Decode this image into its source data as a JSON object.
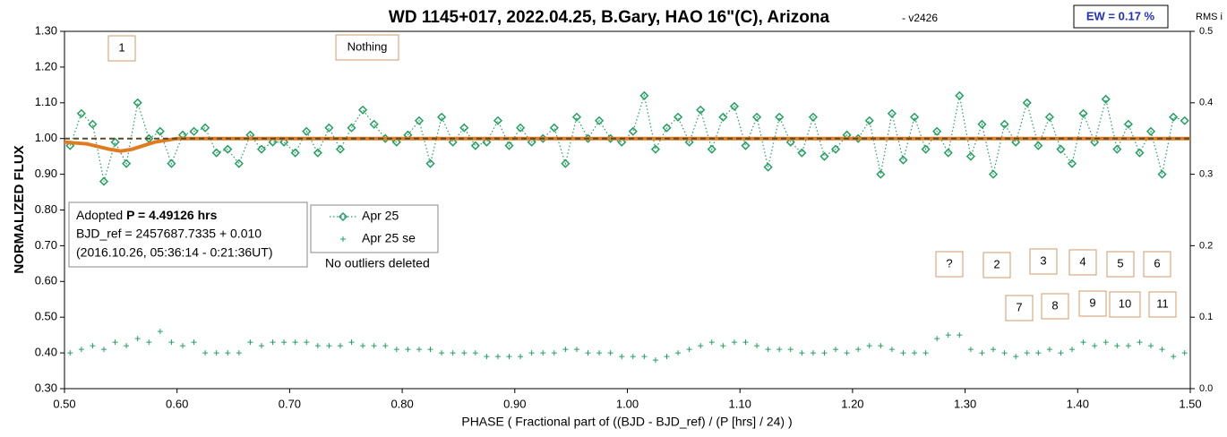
{
  "chart_data": {
    "type": "scatter",
    "title": "WD 1145+017, 2022.04.25, B.Gary, HAO 16\"(C), Arizona",
    "subtitle": "- v2426",
    "xlabel": "PHASE ( Fractional part of ((BJD - BJD_ref) / (P [hrs] / 24) )",
    "ylabel": "NORMALIZED FLUX",
    "y2label": "RMS i",
    "ew": "EW = 0.17 %",
    "info": {
      "prefix": "Adopted",
      "period": "P = 4.49126 hrs",
      "line2": "BJD_ref = 2457687.7335 + 0.010",
      "line3": "(2016.10.26, 05:36:14 - 0:21:36UT)"
    },
    "note": "No outliers deleted",
    "annotations": [
      "1",
      "Nothing",
      "?",
      "2",
      "3",
      "4",
      "5",
      "6",
      "7",
      "8",
      "9",
      "10",
      "11"
    ],
    "xlim": [
      0.5,
      1.5
    ],
    "xticks": [
      {
        "value": 0.5,
        "label": "0.50"
      },
      {
        "value": 0.6,
        "label": "0.60"
      },
      {
        "value": 0.7,
        "label": "0.70"
      },
      {
        "value": 0.8,
        "label": "0.80"
      },
      {
        "value": 0.9,
        "label": "0.90"
      },
      {
        "value": 1.0,
        "label": "1.00"
      },
      {
        "value": 1.1,
        "label": "1.10"
      },
      {
        "value": 1.2,
        "label": "1.20"
      },
      {
        "value": 1.3,
        "label": "1.30"
      },
      {
        "value": 1.4,
        "label": "1.40"
      },
      {
        "value": 1.5,
        "label": "1.50"
      }
    ],
    "ylim": [
      0.3,
      1.3
    ],
    "yticks": [
      {
        "value": 0.3,
        "label": "0.30"
      },
      {
        "value": 0.4,
        "label": "0.40"
      },
      {
        "value": 0.5,
        "label": "0.50"
      },
      {
        "value": 0.6,
        "label": "0.60"
      },
      {
        "value": 0.7,
        "label": "0.70"
      },
      {
        "value": 0.8,
        "label": "0.80"
      },
      {
        "value": 0.9,
        "label": "0.90"
      },
      {
        "value": 1.0,
        "label": "1.00"
      },
      {
        "value": 1.1,
        "label": "1.10"
      },
      {
        "value": 1.2,
        "label": "1.20"
      },
      {
        "value": 1.3,
        "label": "1.30"
      }
    ],
    "y2lim": [
      0,
      0.5
    ],
    "y2ticks": [
      {
        "value": 0,
        "label": "0.0"
      },
      0.1,
      0.2,
      0.3,
      0.4,
      0.5
    ],
    "x": [
      0.505,
      0.515,
      0.525,
      0.535,
      0.545,
      0.555,
      0.565,
      0.575,
      0.585,
      0.595,
      0.605,
      0.615,
      0.625,
      0.635,
      0.645,
      0.655,
      0.665,
      0.675,
      0.685,
      0.695,
      0.705,
      0.715,
      0.725,
      0.735,
      0.745,
      0.755,
      0.765,
      0.775,
      0.785,
      0.795,
      0.805,
      0.815,
      0.825,
      0.835,
      0.845,
      0.855,
      0.865,
      0.875,
      0.885,
      0.895,
      0.905,
      0.915,
      0.925,
      0.935,
      0.945,
      0.955,
      0.965,
      0.975,
      0.985,
      0.995,
      1.005,
      1.015,
      1.025,
      1.035,
      1.045,
      1.055,
      1.065,
      1.075,
      1.085,
      1.095,
      1.105,
      1.115,
      1.125,
      1.135,
      1.145,
      1.155,
      1.165,
      1.175,
      1.185,
      1.195,
      1.205,
      1.215,
      1.225,
      1.235,
      1.245,
      1.255,
      1.265,
      1.275,
      1.285,
      1.295,
      1.305,
      1.315,
      1.325,
      1.335,
      1.345,
      1.355,
      1.365,
      1.375,
      1.385,
      1.395,
      1.405,
      1.415,
      1.425,
      1.435,
      1.445,
      1.455,
      1.465,
      1.475,
      1.485,
      1.495
    ],
    "series": [
      {
        "name": "Apr 25",
        "color": "#22a060",
        "marker": "diamond",
        "values": [
          0.98,
          1.07,
          1.04,
          0.88,
          0.99,
          0.93,
          1.1,
          1.0,
          1.02,
          0.93,
          1.01,
          1.02,
          1.03,
          0.96,
          0.97,
          0.93,
          1.01,
          0.97,
          0.99,
          0.99,
          0.96,
          1.02,
          0.96,
          1.03,
          0.97,
          1.03,
          1.08,
          1.04,
          1.0,
          0.99,
          1.01,
          1.05,
          0.93,
          1.06,
          0.99,
          1.03,
          0.98,
          0.99,
          1.05,
          0.98,
          1.03,
          0.99,
          1.0,
          1.03,
          0.93,
          1.06,
          1.0,
          1.05,
          1.0,
          0.99,
          1.02,
          1.12,
          0.97,
          1.03,
          1.06,
          0.99,
          1.08,
          0.97,
          1.06,
          1.09,
          0.98,
          1.06,
          0.92,
          1.06,
          0.99,
          0.96,
          1.06,
          0.95,
          0.97,
          1.01,
          1.0,
          1.05,
          0.9,
          1.07,
          0.94,
          1.06,
          0.97,
          1.02,
          0.96,
          1.12,
          0.95,
          1.04,
          0.9,
          1.04,
          0.99,
          1.1,
          0.98,
          1.06,
          0.97,
          0.93,
          1.07,
          0.99,
          1.11,
          0.97,
          1.04,
          0.96,
          1.02,
          0.9,
          1.06,
          1.05
        ]
      },
      {
        "name": "Apr 25 se",
        "color": "#22a060",
        "marker": "plus",
        "values": [
          0.4,
          0.41,
          0.42,
          0.41,
          0.43,
          0.42,
          0.44,
          0.43,
          0.46,
          0.43,
          0.42,
          0.43,
          0.4,
          0.4,
          0.4,
          0.4,
          0.43,
          0.42,
          0.43,
          0.43,
          0.43,
          0.43,
          0.42,
          0.42,
          0.42,
          0.43,
          0.42,
          0.42,
          0.42,
          0.41,
          0.41,
          0.41,
          0.41,
          0.4,
          0.4,
          0.4,
          0.4,
          0.39,
          0.39,
          0.39,
          0.39,
          0.4,
          0.4,
          0.4,
          0.41,
          0.41,
          0.4,
          0.4,
          0.4,
          0.39,
          0.39,
          0.39,
          0.38,
          0.39,
          0.4,
          0.41,
          0.42,
          0.43,
          0.42,
          0.43,
          0.43,
          0.42,
          0.41,
          0.41,
          0.41,
          0.4,
          0.4,
          0.4,
          0.41,
          0.4,
          0.41,
          0.42,
          0.42,
          0.41,
          0.4,
          0.4,
          0.4,
          0.44,
          0.45,
          0.45,
          0.41,
          0.4,
          0.41,
          0.4,
          0.39,
          0.4,
          0.4,
          0.41,
          0.4,
          0.41,
          0.43,
          0.42,
          0.43,
          0.42,
          0.42,
          0.43,
          0.42,
          0.41,
          0.39,
          0.4
        ]
      }
    ],
    "models": [
      {
        "color": "#e07b20",
        "dashed": false,
        "x": [
          0.5,
          0.52,
          0.54,
          0.55,
          0.56,
          0.58,
          0.6,
          1.5
        ],
        "values": [
          0.99,
          0.985,
          0.97,
          0.965,
          0.97,
          0.99,
          1.0,
          1.0
        ]
      },
      {
        "color": "#5a4a2a",
        "dashed": true,
        "x": [
          0.5,
          1.5
        ],
        "values": [
          1.0,
          1.0
        ]
      }
    ]
  }
}
